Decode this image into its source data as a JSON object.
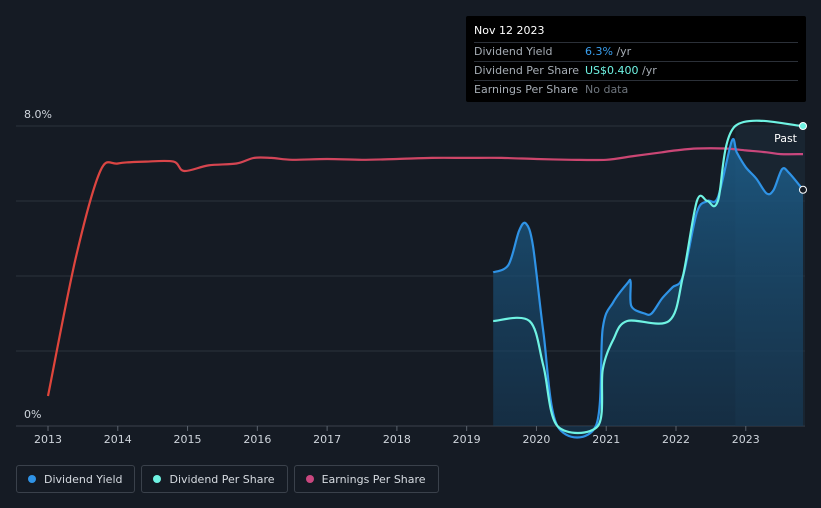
{
  "chart_data": {
    "type": "line",
    "title": "",
    "xlabel": "",
    "ylabel": "",
    "ylim": [
      0,
      8.0
    ],
    "y_tick_labels": [
      "8.0%",
      "0%"
    ],
    "x_tick_labels": [
      "2013",
      "2014",
      "2015",
      "2016",
      "2017",
      "2018",
      "2019",
      "2020",
      "2021",
      "2022",
      "2023"
    ],
    "past_label": "Past",
    "series": [
      {
        "name": "Dividend Yield",
        "color": "#2f93e6",
        "points": [
          [
            2019.38,
            4.1
          ],
          [
            2019.6,
            4.3
          ],
          [
            2019.75,
            5.2
          ],
          [
            2019.85,
            5.4
          ],
          [
            2019.95,
            4.8
          ],
          [
            2020.1,
            2.5
          ],
          [
            2020.3,
            0.0
          ],
          [
            2020.85,
            0.0
          ],
          [
            2020.95,
            2.6
          ],
          [
            2021.1,
            3.3
          ],
          [
            2021.3,
            3.8
          ],
          [
            2021.35,
            3.85
          ],
          [
            2021.36,
            3.2
          ],
          [
            2021.55,
            3.0
          ],
          [
            2021.65,
            3.0
          ],
          [
            2021.8,
            3.4
          ],
          [
            2021.95,
            3.7
          ],
          [
            2022.1,
            4.0
          ],
          [
            2022.3,
            5.7
          ],
          [
            2022.45,
            6.0
          ],
          [
            2022.6,
            6.1
          ],
          [
            2022.8,
            7.6
          ],
          [
            2022.87,
            7.3
          ],
          [
            2023.0,
            6.9
          ],
          [
            2023.15,
            6.6
          ],
          [
            2023.3,
            6.2
          ],
          [
            2023.4,
            6.3
          ],
          [
            2023.52,
            6.85
          ],
          [
            2023.62,
            6.75
          ],
          [
            2023.82,
            6.3
          ]
        ]
      },
      {
        "name": "Dividend Per Share",
        "color": "#6ff3e3",
        "points": [
          [
            2019.38,
            2.8
          ],
          [
            2019.9,
            2.8
          ],
          [
            2020.1,
            1.6
          ],
          [
            2020.3,
            0.0
          ],
          [
            2020.88,
            0.0
          ],
          [
            2020.95,
            1.5
          ],
          [
            2021.1,
            2.3
          ],
          [
            2021.3,
            2.8
          ],
          [
            2021.9,
            2.8
          ],
          [
            2022.1,
            4.0
          ],
          [
            2022.3,
            6.0
          ],
          [
            2022.45,
            6.0
          ],
          [
            2022.6,
            6.0
          ],
          [
            2022.85,
            8.0
          ],
          [
            2023.82,
            8.0
          ]
        ]
      },
      {
        "name": "Earnings Per Share",
        "color": "#c9477f",
        "points": [
          [
            2013.0,
            0.8
          ],
          [
            2013.4,
            4.5
          ],
          [
            2013.75,
            6.8
          ],
          [
            2014.0,
            7.0
          ],
          [
            2014.4,
            7.05
          ],
          [
            2014.8,
            7.05
          ],
          [
            2014.95,
            6.8
          ],
          [
            2015.3,
            6.95
          ],
          [
            2015.7,
            7.0
          ],
          [
            2015.95,
            7.15
          ],
          [
            2016.2,
            7.15
          ],
          [
            2016.5,
            7.1
          ],
          [
            2017.0,
            7.12
          ],
          [
            2017.5,
            7.1
          ],
          [
            2018.0,
            7.12
          ],
          [
            2018.5,
            7.15
          ],
          [
            2019.0,
            7.15
          ],
          [
            2019.5,
            7.15
          ],
          [
            2020.0,
            7.12
          ],
          [
            2020.5,
            7.1
          ],
          [
            2021.0,
            7.1
          ],
          [
            2021.4,
            7.2
          ],
          [
            2021.8,
            7.3
          ],
          [
            2022.0,
            7.35
          ],
          [
            2022.3,
            7.4
          ],
          [
            2022.7,
            7.4
          ],
          [
            2023.0,
            7.35
          ],
          [
            2023.3,
            7.3
          ],
          [
            2023.5,
            7.25
          ],
          [
            2023.82,
            7.25
          ]
        ]
      }
    ]
  },
  "tooltip": {
    "date": "Nov 12 2023",
    "rows": [
      {
        "label": "Dividend Yield",
        "value": "6.3%",
        "unit": " /yr"
      },
      {
        "label": "Dividend Per Share",
        "value": "US$0.400",
        "unit": " /yr"
      },
      {
        "label": "Earnings Per Share",
        "value": "No data"
      }
    ]
  },
  "legend": [
    {
      "label": "Dividend Yield",
      "color": "#2f93e6"
    },
    {
      "label": "Dividend Per Share",
      "color": "#6ff3e3"
    },
    {
      "label": "Earnings Per Share",
      "color": "#c9477f"
    }
  ]
}
